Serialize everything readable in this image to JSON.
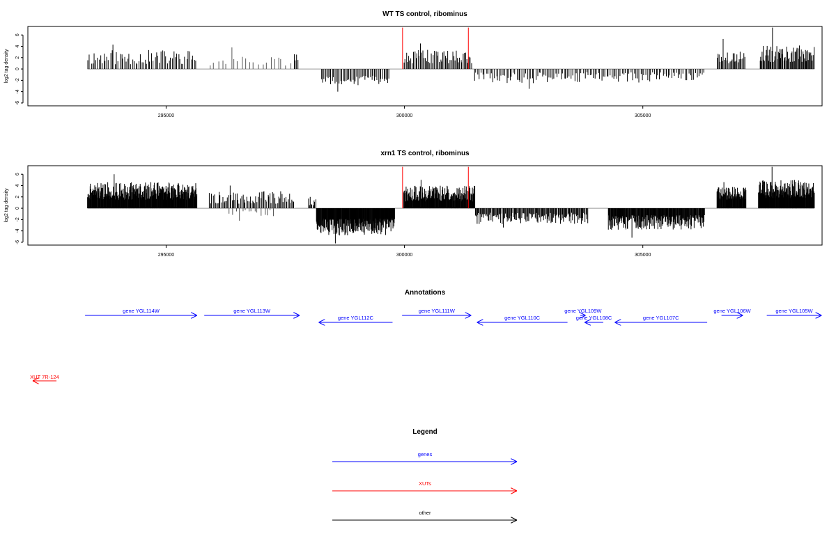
{
  "figure": {
    "panels": [
      {
        "title": "WT TS control, ribominus",
        "ylabel": "log2 tag density"
      },
      {
        "title": "xrn1 TS control, ribominus",
        "ylabel": "log2 tag density"
      }
    ],
    "annotations_title": "Annotations",
    "legend_title": "Legend",
    "legend": [
      {
        "label": "genes",
        "color": "#0000ff"
      },
      {
        "label": "XUTs",
        "color": "#ff0000"
      },
      {
        "label": "other",
        "color": "#000000"
      }
    ],
    "genes": [
      {
        "label": "gene YGL114W",
        "strand": "+",
        "row": 0,
        "start": 293300,
        "end": 295650
      },
      {
        "label": "gene YGL113W",
        "strand": "+",
        "row": 0,
        "start": 295800,
        "end": 297800
      },
      {
        "label": "gene YGL112C",
        "strand": "-",
        "row": 1,
        "start": 298200,
        "end": 299750
      },
      {
        "label": "gene YGL111W",
        "strand": "+",
        "row": 0,
        "start": 299950,
        "end": 301400
      },
      {
        "label": "gene YGL110C",
        "strand": "-",
        "row": 1,
        "start": 301520,
        "end": 303420
      },
      {
        "label": "gene YGL109W",
        "strand": "+",
        "row": 0,
        "start": 303690,
        "end": 303800
      },
      {
        "label": "gene YGL108C",
        "strand": "-",
        "row": 1,
        "start": 303780,
        "end": 304170
      },
      {
        "label": "gene YGL107C",
        "strand": "-",
        "row": 1,
        "start": 304410,
        "end": 306350
      },
      {
        "label": "gene YGL106W",
        "strand": "+",
        "row": 0,
        "start": 306650,
        "end": 307100
      },
      {
        "label": "gene YGL105W",
        "strand": "+",
        "row": 0,
        "start": 307600,
        "end": 308750
      }
    ],
    "xuts": [
      {
        "label": "XUT 7R-124",
        "strand": "-",
        "start": 292200,
        "end": 292700
      }
    ]
  },
  "chart_data": [
    {
      "type": "bar",
      "title": "WT TS control, ribominus",
      "xlabel": "",
      "ylabel": "log2 tag density",
      "xlim": [
        292100,
        308760
      ],
      "ylim": [
        -6.5,
        7.5
      ],
      "yticks": [
        -6,
        -4,
        -2,
        0,
        2,
        4,
        6
      ],
      "xticks": [
        295000,
        300000,
        305000
      ],
      "xtick_labels": [
        "295000",
        "300000",
        "305000"
      ],
      "baseline": 0,
      "red_marks": [
        299960,
        301340
      ],
      "red_mark_top": 7.3,
      "segments": [
        {
          "from": 293350,
          "to": 295650,
          "sign": 1,
          "lo": 0.8,
          "hi": 3.4,
          "density": 0.03,
          "seed": 11,
          "peak": 4.3
        },
        {
          "from": 295900,
          "to": 297650,
          "sign": 1,
          "lo": 0.6,
          "hi": 2.2,
          "density": 0.012,
          "seed": 12,
          "peak": 3.8
        },
        {
          "from": 297680,
          "to": 297780,
          "sign": 1,
          "lo": 1.5,
          "hi": 2.6,
          "density": 0.04,
          "seed": 13,
          "peak": 2.6
        },
        {
          "from": 298250,
          "to": 299700,
          "sign": -1,
          "lo": 1.2,
          "hi": 3.0,
          "density": 0.035,
          "seed": 14,
          "peak": 4.0
        },
        {
          "from": 299980,
          "to": 301420,
          "sign": 1,
          "lo": 1.0,
          "hi": 3.4,
          "density": 0.04,
          "seed": 15,
          "peak": 4.5
        },
        {
          "from": 301450,
          "to": 306300,
          "sign": -1,
          "lo": 0.6,
          "hi": 2.6,
          "density": 0.028,
          "seed": 16,
          "peak": 3.5
        },
        {
          "from": 306550,
          "to": 307150,
          "sign": 1,
          "lo": 1.0,
          "hi": 3.5,
          "density": 0.045,
          "seed": 17,
          "peak": 5.3
        },
        {
          "from": 307450,
          "to": 308600,
          "sign": 1,
          "lo": 1.2,
          "hi": 4.2,
          "density": 0.06,
          "seed": 18,
          "peak": 7.3
        }
      ]
    },
    {
      "type": "bar",
      "title": "xrn1 TS control, ribominus",
      "xlabel": "",
      "ylabel": "log2 tag density",
      "xlim": [
        292100,
        308760
      ],
      "ylim": [
        -6.5,
        7.5
      ],
      "yticks": [
        -6,
        -4,
        -2,
        0,
        2,
        4,
        6
      ],
      "xticks": [
        295000,
        300000,
        305000
      ],
      "xtick_labels": [
        "295000",
        "300000",
        "305000"
      ],
      "baseline": 0,
      "red_marks": [
        299960,
        301340
      ],
      "red_mark_top": 7.3,
      "segments": [
        {
          "from": 293350,
          "to": 295650,
          "sign": 1,
          "lo": 1.5,
          "hi": 4.6,
          "density": 0.12,
          "seed": 21,
          "peak": 6.0
        },
        {
          "from": 295900,
          "to": 297700,
          "sign": 1,
          "lo": 0.8,
          "hi": 3.0,
          "density": 0.04,
          "seed": 22,
          "peak": 4.0
        },
        {
          "from": 296300,
          "to": 297300,
          "sign": -1,
          "lo": 0.3,
          "hi": 1.6,
          "density": 0.015,
          "seed": 23,
          "peak": 2.2
        },
        {
          "from": 298150,
          "to": 299800,
          "sign": -1,
          "lo": 1.8,
          "hi": 4.8,
          "density": 0.13,
          "seed": 24,
          "peak": 6.2
        },
        {
          "from": 297980,
          "to": 298150,
          "sign": 1,
          "lo": 0.5,
          "hi": 1.8,
          "density": 0.05,
          "seed": 25,
          "peak": 2.0
        },
        {
          "from": 299980,
          "to": 301480,
          "sign": 1,
          "lo": 1.2,
          "hi": 4.0,
          "density": 0.12,
          "seed": 26,
          "peak": 5.0
        },
        {
          "from": 301480,
          "to": 303850,
          "sign": -1,
          "lo": 0.8,
          "hi": 2.8,
          "density": 0.06,
          "seed": 27,
          "peak": 3.4
        },
        {
          "from": 304270,
          "to": 306300,
          "sign": -1,
          "lo": 1.2,
          "hi": 3.8,
          "density": 0.1,
          "seed": 28,
          "peak": 5.2
        },
        {
          "from": 306550,
          "to": 307170,
          "sign": 1,
          "lo": 1.5,
          "hi": 3.8,
          "density": 0.12,
          "seed": 29,
          "peak": 4.6
        },
        {
          "from": 307420,
          "to": 308600,
          "sign": 1,
          "lo": 1.8,
          "hi": 5.0,
          "density": 0.14,
          "seed": 30,
          "peak": 7.3
        }
      ]
    }
  ]
}
